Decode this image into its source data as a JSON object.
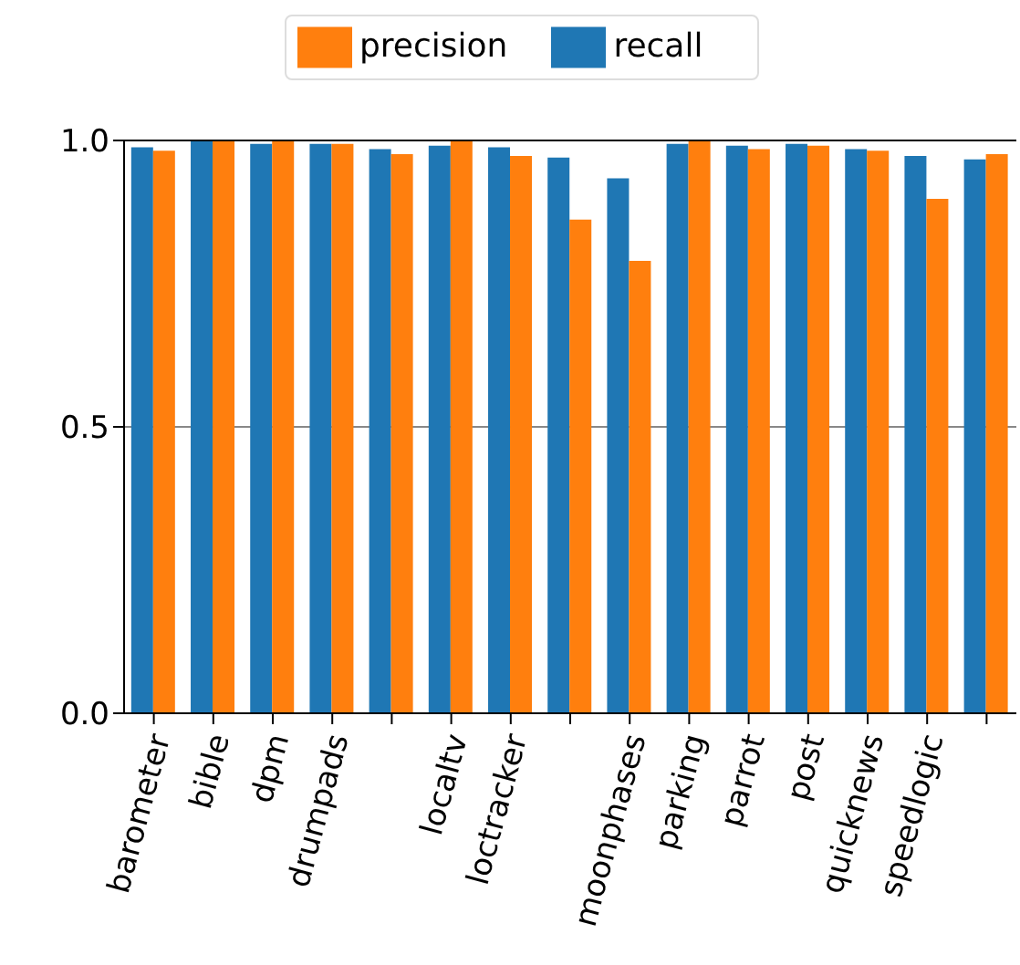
{
  "chart_data": {
    "type": "bar",
    "categories": [
      "barometer",
      "bible",
      "dpm",
      "drumpads",
      null,
      "localtv",
      "loctracker",
      null,
      "moonphases",
      "parking",
      "parrot",
      "post",
      "quicknews",
      "speedlogic",
      null
    ],
    "series": [
      {
        "name": "recall",
        "color": "#1f77b4",
        "values": [
          0.988,
          1.0,
          0.994,
          0.994,
          0.985,
          0.991,
          0.988,
          0.97,
          0.934,
          0.994,
          0.991,
          0.994,
          0.985,
          0.973,
          0.967
        ]
      },
      {
        "name": "precision",
        "color": "#ff7f0e",
        "values": [
          0.982,
          1.0,
          1.0,
          0.994,
          0.976,
          1.0,
          0.973,
          0.862,
          0.79,
          1.0,
          0.985,
          0.991,
          0.982,
          0.898,
          0.976
        ]
      }
    ],
    "ylim": [
      0,
      1.0
    ],
    "yticks": [
      {
        "value": 0,
        "label": "0.0"
      },
      {
        "value": 0.5,
        "label": "0.5"
      },
      {
        "value": 1.0,
        "label": "1.0"
      }
    ],
    "grid": "y",
    "legend": "top"
  }
}
